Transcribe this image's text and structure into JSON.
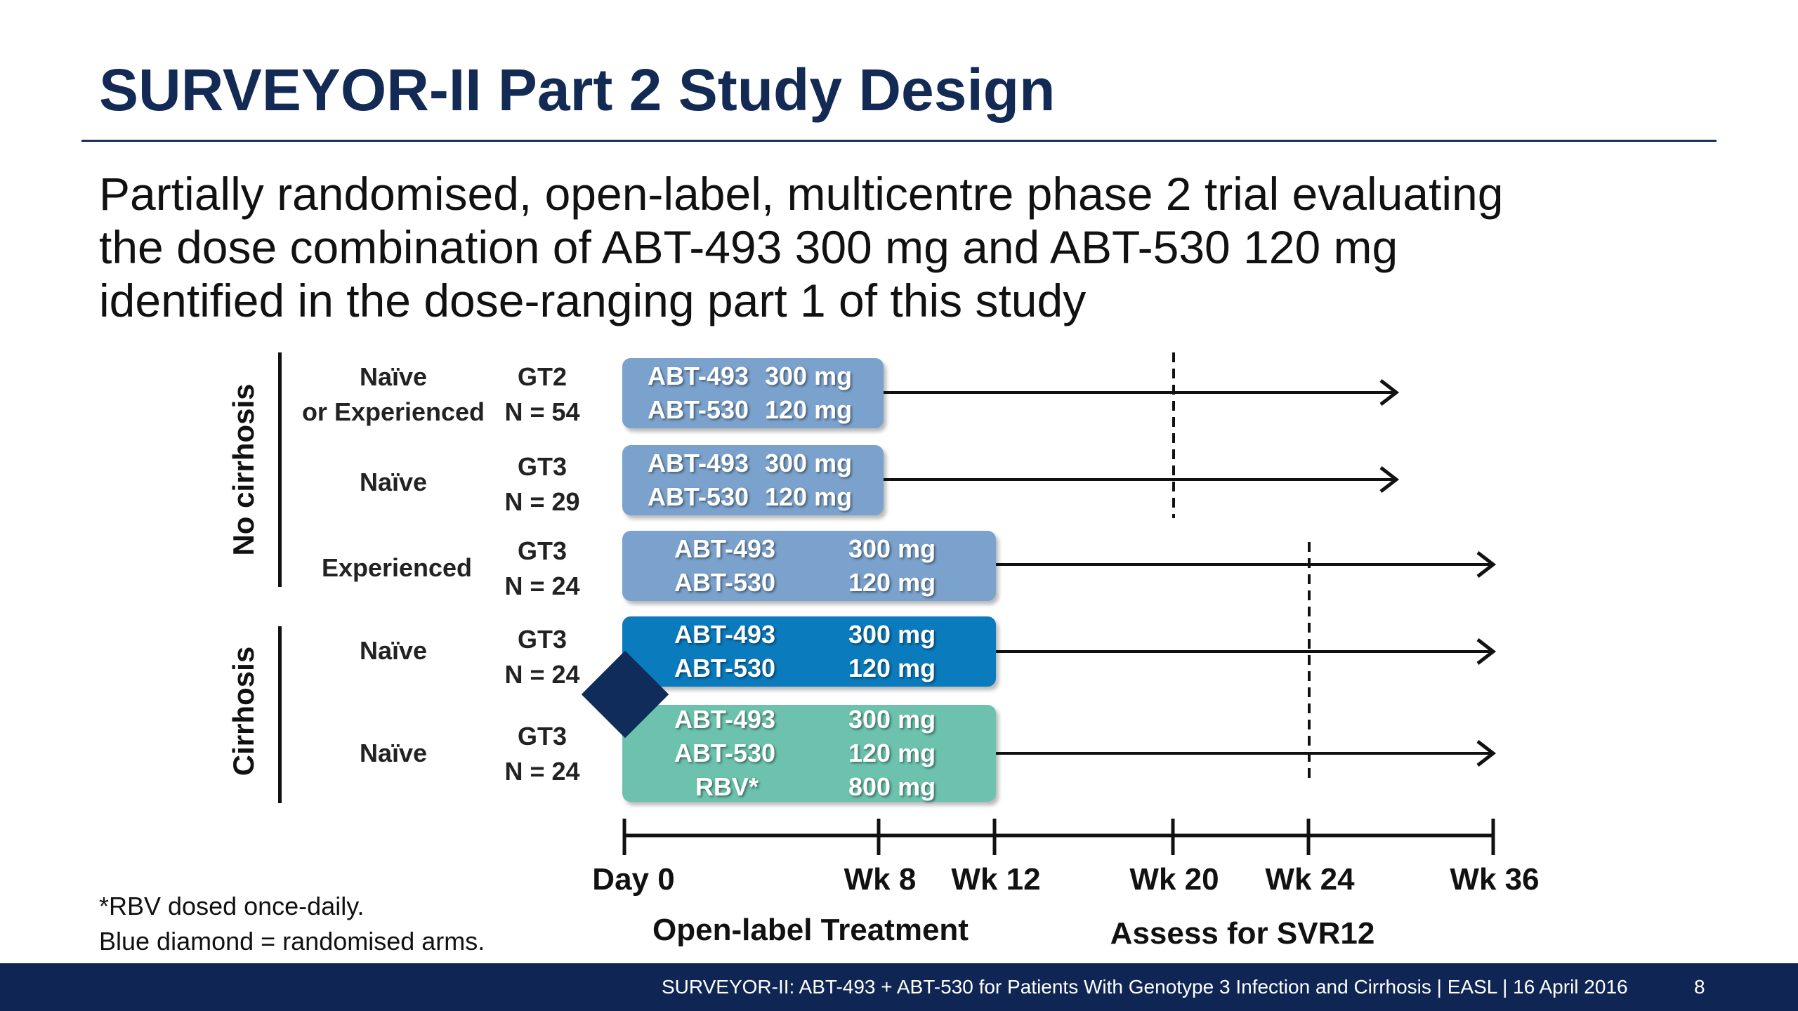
{
  "slide": {
    "title": "SURVEYOR-II Part 2 Study Design",
    "subtitle_lines": [
      "Partially randomised, open-label, multicentre phase 2 trial evaluating",
      "the dose combination of ABT-493 300 mg and ABT-530 120 mg",
      "identified in the dose-ranging part 1 of this study"
    ]
  },
  "groups": [
    {
      "label": "No cirrhosis"
    },
    {
      "label": "Cirrhosis"
    }
  ],
  "arms": [
    {
      "population": [
        "Naïve",
        "or Experienced"
      ],
      "genotype": "GT2",
      "n": "N = 54",
      "drugs": [
        [
          "ABT-493",
          "300 mg"
        ],
        [
          "ABT-530",
          "120 mg"
        ]
      ],
      "color": "#7ba2cc",
      "treatment_weeks": 8,
      "assessment_week": 20
    },
    {
      "population": [
        "Naïve"
      ],
      "genotype": "GT3",
      "n": "N = 29",
      "drugs": [
        [
          "ABT-493",
          "300 mg"
        ],
        [
          "ABT-530",
          "120 mg"
        ]
      ],
      "color": "#7ba2cc",
      "treatment_weeks": 8,
      "assessment_week": 20
    },
    {
      "population": [
        "Experienced"
      ],
      "genotype": "GT3",
      "n": "N = 24",
      "drugs": [
        [
          "ABT-493",
          "300 mg"
        ],
        [
          "ABT-530",
          "120 mg"
        ]
      ],
      "color": "#7ba2cc",
      "treatment_weeks": 12,
      "assessment_week": 24
    },
    {
      "population": [
        "Naïve"
      ],
      "genotype": "GT3",
      "n": "N = 24",
      "drugs": [
        [
          "ABT-493",
          "300 mg"
        ],
        [
          "ABT-530",
          "120 mg"
        ]
      ],
      "color": "#0a7bbd",
      "treatment_weeks": 12,
      "assessment_week": 24
    },
    {
      "population": [
        "Naïve"
      ],
      "genotype": "GT3",
      "n": "N = 24",
      "drugs": [
        [
          "ABT-493",
          "300 mg"
        ],
        [
          "ABT-530",
          "120 mg"
        ],
        [
          "RBV*",
          "800 mg"
        ]
      ],
      "color": "#6cc2ad",
      "treatment_weeks": 12,
      "assessment_week": 24
    }
  ],
  "timeline": {
    "ticks": [
      {
        "week": 0,
        "label": "Day 0"
      },
      {
        "week": 8,
        "label": "Wk 8"
      },
      {
        "week": 12,
        "label": "Wk 12"
      },
      {
        "week": 20,
        "label": "Wk 20"
      },
      {
        "week": 24,
        "label": "Wk 24"
      },
      {
        "week": 36,
        "label": "Wk 36"
      }
    ],
    "treatment_caption": "Open-label Treatment",
    "assessment_caption": "Assess for SVR12"
  },
  "footnotes": [
    "*RBV dosed once-daily.",
    "Blue diamond = randomised arms."
  ],
  "footer": {
    "text": "SURVEYOR-II: ABT-493 + ABT-530 for Patients With Genotype 3 Infection and Cirrhosis  | EASL | 16 April 2016",
    "page": "8"
  },
  "colors": {
    "title": "#132a55",
    "footer_bg": "#0f2553",
    "diamond": "#0f2c5a"
  }
}
